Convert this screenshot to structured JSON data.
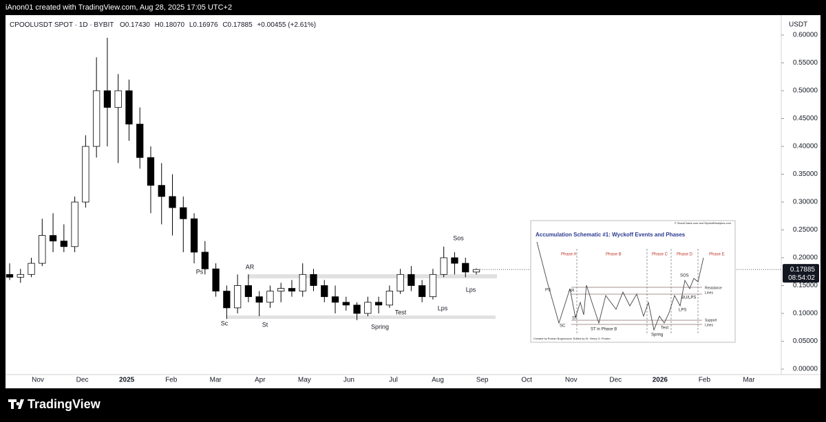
{
  "header": {
    "attribution": "iAnon01 created with TradingView.com, Aug 28, 2025 17:05 UTC+2"
  },
  "chart_data": {
    "type": "candlestick",
    "symbol": "CPOOLUSDT SPOT · 1D · BYBIT",
    "ohlc_text": [
      "O0.17430",
      "H0.18070",
      "L0.16976",
      "C0.17885",
      "+0.00455 (+2.61%)"
    ],
    "currency": "USDT",
    "up_color": "#ffffff",
    "down_color": "#000000",
    "edge_color": "#000000",
    "open": [
      0.17,
      0.165,
      0.17,
      0.19,
      0.24,
      0.23,
      0.22,
      0.3,
      0.4,
      0.5,
      0.47,
      0.5,
      0.44,
      0.38,
      0.33,
      0.31,
      0.29,
      0.27,
      0.21,
      0.18,
      0.14,
      0.11,
      0.15,
      0.13,
      0.12,
      0.14,
      0.145,
      0.14,
      0.17,
      0.15,
      0.13,
      0.12,
      0.115,
      0.1,
      0.12,
      0.115,
      0.14,
      0.17,
      0.15,
      0.13,
      0.17,
      0.2,
      0.19,
      0.1743
    ],
    "high": [
      0.19,
      0.18,
      0.2,
      0.27,
      0.28,
      0.26,
      0.31,
      0.42,
      0.56,
      0.595,
      0.53,
      0.52,
      0.47,
      0.4,
      0.37,
      0.35,
      0.31,
      0.28,
      0.23,
      0.19,
      0.15,
      0.17,
      0.17,
      0.14,
      0.15,
      0.155,
      0.16,
      0.19,
      0.18,
      0.16,
      0.15,
      0.13,
      0.12,
      0.13,
      0.13,
      0.15,
      0.18,
      0.185,
      0.16,
      0.18,
      0.22,
      0.21,
      0.2,
      0.1807
    ],
    "low": [
      0.16,
      0.155,
      0.165,
      0.185,
      0.21,
      0.21,
      0.21,
      0.29,
      0.38,
      0.4,
      0.37,
      0.41,
      0.36,
      0.28,
      0.26,
      0.24,
      0.21,
      0.19,
      0.17,
      0.13,
      0.09,
      0.1,
      0.12,
      0.095,
      0.11,
      0.12,
      0.13,
      0.13,
      0.14,
      0.12,
      0.1,
      0.105,
      0.088,
      0.095,
      0.1,
      0.11,
      0.135,
      0.14,
      0.12,
      0.125,
      0.165,
      0.17,
      0.165,
      0.16976
    ],
    "close": [
      0.165,
      0.17,
      0.19,
      0.24,
      0.23,
      0.22,
      0.3,
      0.4,
      0.5,
      0.47,
      0.5,
      0.44,
      0.38,
      0.33,
      0.31,
      0.29,
      0.27,
      0.21,
      0.18,
      0.14,
      0.11,
      0.15,
      0.13,
      0.12,
      0.14,
      0.145,
      0.14,
      0.17,
      0.15,
      0.13,
      0.12,
      0.115,
      0.1,
      0.12,
      0.115,
      0.14,
      0.17,
      0.15,
      0.13,
      0.17,
      0.2,
      0.19,
      0.1743,
      0.17885
    ],
    "ylim": [
      0,
      0.6
    ],
    "yticks": [
      {
        "value": 0,
        "label": "0.00000"
      },
      {
        "value": 0.05,
        "label": "0.05000"
      },
      {
        "value": 0.1,
        "label": "0.10000"
      },
      {
        "value": 0.15,
        "label": "0.15000"
      },
      {
        "value": 0.2,
        "label": "0.20000"
      },
      {
        "value": 0.25,
        "label": "0.25000"
      },
      {
        "value": 0.3,
        "label": "0.30000"
      },
      {
        "value": 0.35,
        "label": "0.35000"
      },
      {
        "value": 0.4,
        "label": "0.40000"
      },
      {
        "value": 0.45,
        "label": "0.45000"
      },
      {
        "value": 0.5,
        "label": "0.50000"
      },
      {
        "value": 0.55,
        "label": "0.55000"
      },
      {
        "value": 0.6,
        "label": "0.60000"
      }
    ],
    "time_labels": [
      "Nov",
      "Dec",
      "2025",
      "Feb",
      "Mar",
      "Apr",
      "May",
      "Jun",
      "Jul",
      "Aug",
      "Sep",
      "Oct",
      "Nov",
      "Dec",
      "2026",
      "Feb",
      "Mar"
    ],
    "last_price": 0.17885,
    "countdown": "08:54:02",
    "annotations": [
      "Ps",
      "AR",
      "Sc",
      "St",
      "Spring",
      "Test",
      "Lps",
      "Sos",
      "Lps"
    ]
  },
  "inset": {
    "title": "Accumulation Schematic #1: Wyckoff Events and Phases",
    "copyright": "© StockCharts.com and WyckoffAnalytics.com",
    "phases": [
      "Phase A",
      "Phase B",
      "Phase C",
      "Phase D",
      "Phase E"
    ],
    "events": [
      "PS",
      "SC",
      "AR",
      "ST",
      "ST in Phase B",
      "Spring",
      "Test",
      "LPS",
      "BU/LPS",
      "SOS"
    ],
    "resistance": [
      "Resistance",
      "Lines"
    ],
    "support": [
      "Support",
      "Lines"
    ],
    "credit": "Created by Roman Bogomazov. Edited by Dr. Henry G. Pruden"
  },
  "footer": {
    "brand": "TradingView"
  }
}
